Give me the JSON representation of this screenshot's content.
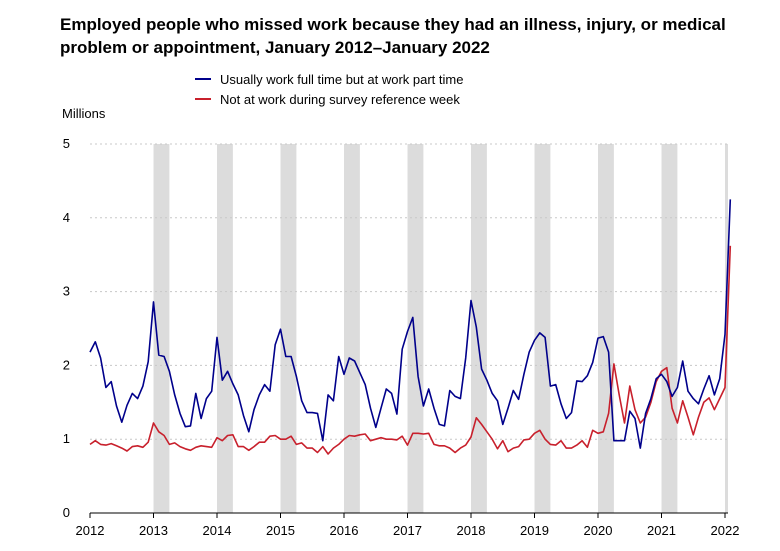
{
  "chart_data": {
    "type": "line",
    "title": "Employed people who missed work because they had an illness, injury, or medical problem or appointment, January 2012–January 2022",
    "ylabel": "Millions",
    "xlabel": "",
    "ylim": [
      0,
      5
    ],
    "yticks": [
      "0",
      "1",
      "2",
      "3",
      "4",
      "5"
    ],
    "xticks": [
      "2012",
      "2013",
      "2014",
      "2015",
      "2016",
      "2017",
      "2018",
      "2019",
      "2020",
      "2021",
      "2022"
    ],
    "x_start": "January 2012",
    "x_end": "January 2022",
    "grid": "horizontal dotted",
    "shaded_bands": "January–March of each year, 2013–2022",
    "legend_position": "top-center",
    "colors": {
      "full_time": "#00008b",
      "not_at_work": "#c8202c",
      "band": "#dcdcdc",
      "grid": "#c8c8c8"
    },
    "series": [
      {
        "name": "Usually work full time but at work part time",
        "color": "#00008b",
        "values": [
          2.18,
          2.32,
          2.1,
          1.7,
          1.78,
          1.45,
          1.23,
          1.46,
          1.62,
          1.55,
          1.72,
          2.05,
          2.86,
          2.14,
          2.12,
          1.92,
          1.6,
          1.35,
          1.17,
          1.18,
          1.62,
          1.28,
          1.55,
          1.65,
          2.38,
          1.8,
          1.92,
          1.75,
          1.6,
          1.32,
          1.1,
          1.4,
          1.6,
          1.74,
          1.65,
          2.28,
          2.49,
          2.12,
          2.12,
          1.85,
          1.52,
          1.36,
          1.36,
          1.35,
          0.98,
          1.6,
          1.52,
          2.12,
          1.88,
          2.1,
          2.06,
          1.9,
          1.74,
          1.42,
          1.16,
          1.42,
          1.68,
          1.62,
          1.34,
          2.22,
          2.46,
          2.65,
          1.85,
          1.45,
          1.68,
          1.42,
          1.2,
          1.18,
          1.66,
          1.58,
          1.55,
          2.1,
          2.88,
          2.52,
          1.95,
          1.8,
          1.62,
          1.52,
          1.2,
          1.42,
          1.66,
          1.54,
          1.88,
          2.18,
          2.34,
          2.44,
          2.38,
          1.72,
          1.74,
          1.48,
          1.28,
          1.36,
          1.79,
          1.78,
          1.86,
          2.04,
          2.37,
          2.39,
          2.18,
          0.98,
          0.98,
          0.98,
          1.38,
          1.28,
          0.88,
          1.35,
          1.55,
          1.82,
          1.88,
          1.78,
          1.58,
          1.7,
          2.06,
          1.65,
          1.55,
          1.48,
          1.68,
          1.86,
          1.6,
          1.82,
          2.42,
          4.25
        ]
      },
      {
        "name": "Not at work during survey reference week",
        "color": "#c8202c",
        "values": [
          0.93,
          0.98,
          0.93,
          0.92,
          0.94,
          0.91,
          0.88,
          0.84,
          0.9,
          0.91,
          0.89,
          0.96,
          1.22,
          1.1,
          1.05,
          0.93,
          0.95,
          0.9,
          0.87,
          0.85,
          0.89,
          0.91,
          0.9,
          0.89,
          1.02,
          0.98,
          1.05,
          1.06,
          0.9,
          0.9,
          0.85,
          0.9,
          0.96,
          0.96,
          1.04,
          1.05,
          1.0,
          1.0,
          1.04,
          0.93,
          0.95,
          0.88,
          0.88,
          0.82,
          0.9,
          0.8,
          0.88,
          0.93,
          1.0,
          1.05,
          1.04,
          1.06,
          1.07,
          0.98,
          1.0,
          1.02,
          1.0,
          1.0,
          0.99,
          1.04,
          0.92,
          1.08,
          1.08,
          1.07,
          1.08,
          0.93,
          0.91,
          0.91,
          0.88,
          0.82,
          0.88,
          0.92,
          1.03,
          1.29,
          1.2,
          1.1,
          1.0,
          0.87,
          0.98,
          0.83,
          0.88,
          0.9,
          0.99,
          1.0,
          1.08,
          1.12,
          1.0,
          0.93,
          0.92,
          0.98,
          0.88,
          0.88,
          0.92,
          0.98,
          0.89,
          1.12,
          1.08,
          1.1,
          1.35,
          2.02,
          1.6,
          1.22,
          1.72,
          1.4,
          1.22,
          1.3,
          1.5,
          1.78,
          1.92,
          1.97,
          1.42,
          1.22,
          1.52,
          1.3,
          1.06,
          1.3,
          1.5,
          1.56,
          1.4,
          1.55,
          1.7,
          3.62
        ]
      }
    ]
  }
}
